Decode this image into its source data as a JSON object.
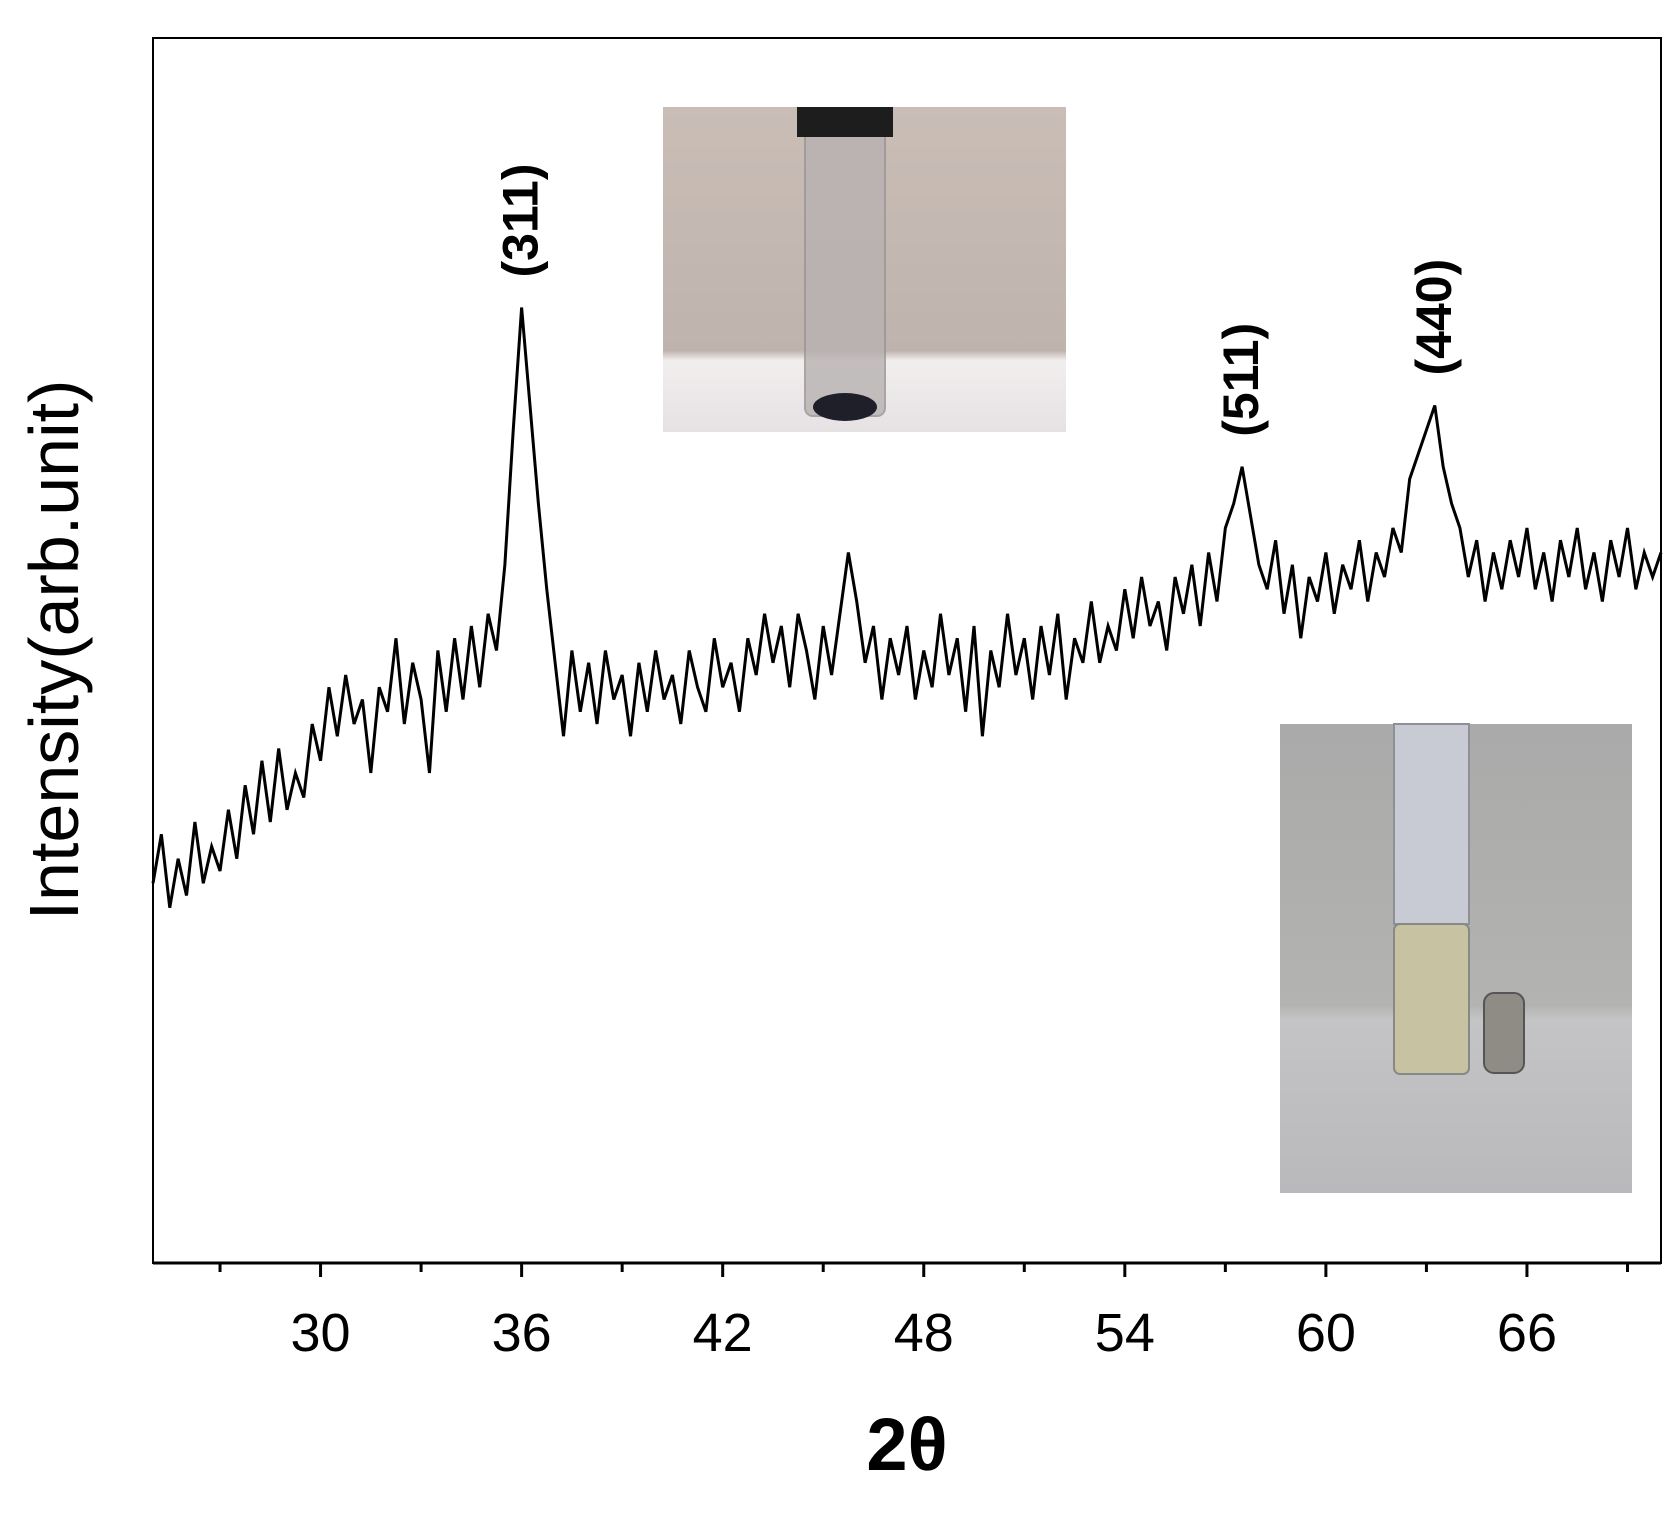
{
  "chart_data": {
    "type": "line",
    "x_label": "2θ",
    "y_label": "Intensity(arb.unit)",
    "xlim": [
      25,
      70
    ],
    "ylim": [
      0,
      100
    ],
    "xticks": [
      30,
      36,
      42,
      48,
      54,
      60,
      66
    ],
    "xminorticks": [
      27,
      33,
      39,
      45,
      51,
      57,
      63,
      69
    ],
    "annotations": [
      {
        "text": "(311)",
        "x": 36
      },
      {
        "text": "(511)",
        "x": 57.5
      },
      {
        "text": "(440)",
        "x": 63.25
      }
    ],
    "x": [
      25,
      25.25,
      25.5,
      25.75,
      26,
      26.25,
      26.5,
      26.75,
      27,
      27.25,
      27.5,
      27.75,
      28,
      28.25,
      28.5,
      28.75,
      29,
      29.25,
      29.5,
      29.75,
      30,
      30.25,
      30.5,
      30.75,
      31,
      31.25,
      31.5,
      31.75,
      32,
      32.25,
      32.5,
      32.75,
      33,
      33.25,
      33.5,
      33.75,
      34,
      34.25,
      34.5,
      34.75,
      35,
      35.25,
      35.5,
      35.75,
      36,
      36.25,
      36.5,
      36.75,
      37,
      37.25,
      37.5,
      37.75,
      38,
      38.25,
      38.5,
      38.75,
      39,
      39.25,
      39.5,
      39.75,
      40,
      40.25,
      40.5,
      40.75,
      41,
      41.25,
      41.5,
      41.75,
      42,
      42.25,
      42.5,
      42.75,
      43,
      43.25,
      43.5,
      43.75,
      44,
      44.25,
      44.5,
      44.75,
      45,
      45.25,
      45.5,
      45.75,
      46,
      46.25,
      46.5,
      46.75,
      47,
      47.25,
      47.5,
      47.75,
      48,
      48.25,
      48.5,
      48.75,
      49,
      49.25,
      49.5,
      49.75,
      50,
      50.25,
      50.5,
      50.75,
      51,
      51.25,
      51.5,
      51.75,
      52,
      52.25,
      52.5,
      52.75,
      53,
      53.25,
      53.5,
      53.75,
      54,
      54.25,
      54.5,
      54.75,
      55,
      55.25,
      55.5,
      55.75,
      56,
      56.25,
      56.5,
      56.75,
      57,
      57.25,
      57.5,
      57.75,
      58,
      58.25,
      58.5,
      58.75,
      59,
      59.25,
      59.5,
      59.75,
      60,
      60.25,
      60.5,
      60.75,
      61,
      61.25,
      61.5,
      61.75,
      62,
      62.25,
      62.5,
      62.75,
      63,
      63.25,
      63.5,
      63.75,
      64,
      64.25,
      64.5,
      64.75,
      65,
      65.25,
      65.5,
      65.75,
      66,
      66.25,
      66.5,
      66.75,
      67,
      67.25,
      67.5,
      67.75,
      68,
      68.25,
      68.5,
      68.75,
      69,
      69.25,
      69.5,
      69.75,
      70
    ],
    "series": [
      {
        "color": "#000000",
        "values": [
          31,
          35,
          29,
          33,
          30,
          36,
          31,
          34,
          32,
          37,
          33,
          39,
          35,
          41,
          36,
          42,
          37,
          40,
          38,
          44,
          41,
          47,
          43,
          48,
          44,
          46,
          40,
          47,
          45,
          51,
          44,
          49,
          46,
          40,
          50,
          45,
          51,
          46,
          52,
          47,
          53,
          50,
          57,
          68,
          78,
          70,
          62,
          55,
          49,
          43,
          50,
          45,
          49,
          44,
          50,
          46,
          48,
          43,
          49,
          45,
          50,
          46,
          48,
          44,
          50,
          47,
          45,
          51,
          47,
          49,
          45,
          51,
          48,
          53,
          49,
          52,
          47,
          53,
          50,
          46,
          52,
          48,
          53,
          58,
          54,
          49,
          52,
          46,
          51,
          48,
          52,
          46,
          50,
          47,
          53,
          48,
          51,
          45,
          52,
          43,
          50,
          47,
          53,
          48,
          51,
          46,
          52,
          48,
          53,
          46,
          51,
          49,
          54,
          49,
          52,
          50,
          55,
          51,
          56,
          52,
          54,
          50,
          56,
          53,
          57,
          52,
          58,
          54,
          60,
          62,
          65,
          61,
          57,
          55,
          59,
          53,
          57,
          51,
          56,
          54,
          58,
          53,
          57,
          55,
          59,
          54,
          58,
          56,
          60,
          58,
          64,
          66,
          68,
          70,
          65,
          62,
          60,
          56,
          59,
          54,
          58,
          55,
          59,
          56,
          60,
          55,
          58,
          54,
          59,
          56,
          60,
          55,
          58,
          54,
          59,
          56,
          60,
          55,
          58,
          56,
          58
        ]
      }
    ]
  }
}
